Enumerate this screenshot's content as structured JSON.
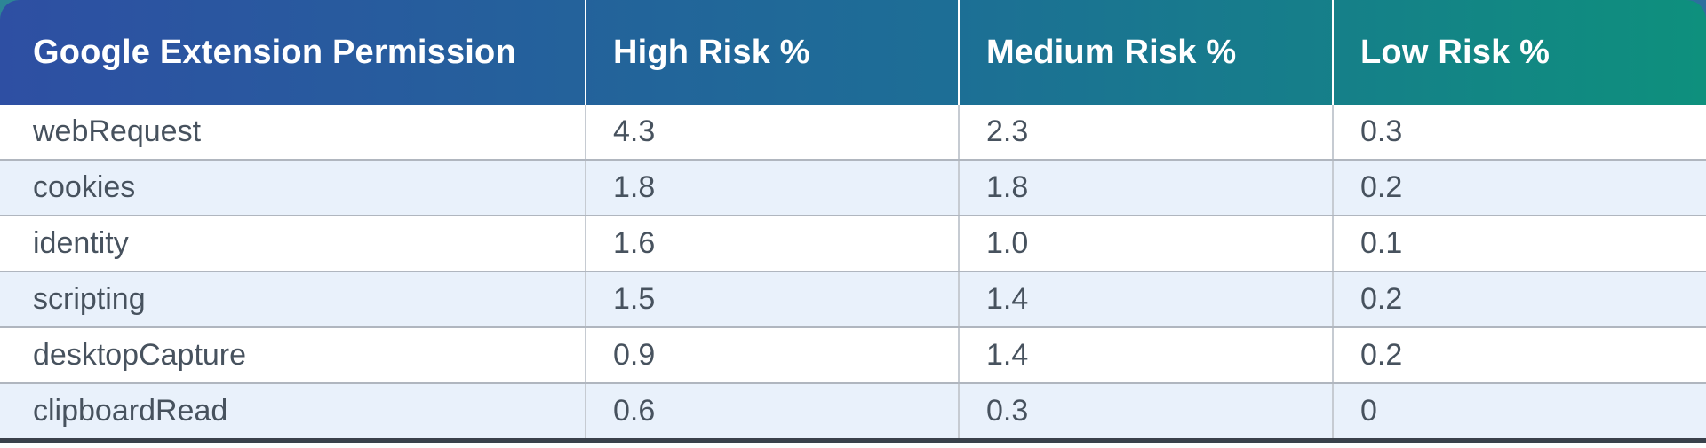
{
  "chart_data": {
    "type": "table",
    "columns": [
      "Google Extension Permission",
      "High Risk %",
      "Medium Risk %",
      "Low Risk %"
    ],
    "rows": [
      [
        "webRequest",
        "4.3",
        "2.3",
        "0.3"
      ],
      [
        "cookies",
        "1.8",
        "1.8",
        "0.2"
      ],
      [
        "identity",
        "1.6",
        "1.0",
        "0.1"
      ],
      [
        "scripting",
        "1.5",
        "1.4",
        "0.2"
      ],
      [
        "desktopCapture",
        "0.9",
        "1.4",
        "0.2"
      ],
      [
        "clipboardRead",
        "0.6",
        "0.3",
        "0"
      ]
    ]
  },
  "colors": {
    "header-gradient-left": "#2e4fa3",
    "header-gradient-mid": "#1d6e96",
    "header-gradient-right": "#0e907d",
    "backdrop-left": "#2d8596",
    "backdrop-right": "#2d6f9e",
    "header-text": "#ffffff",
    "header-divider": "#ffffff",
    "stripe-row": "#e9f1fb",
    "white-row": "#ffffff",
    "cell-text": "#47525e",
    "row-divider": "#b0b6bf",
    "col-divider": "#c6cbd2",
    "bottom-border": "#3a414b"
  }
}
